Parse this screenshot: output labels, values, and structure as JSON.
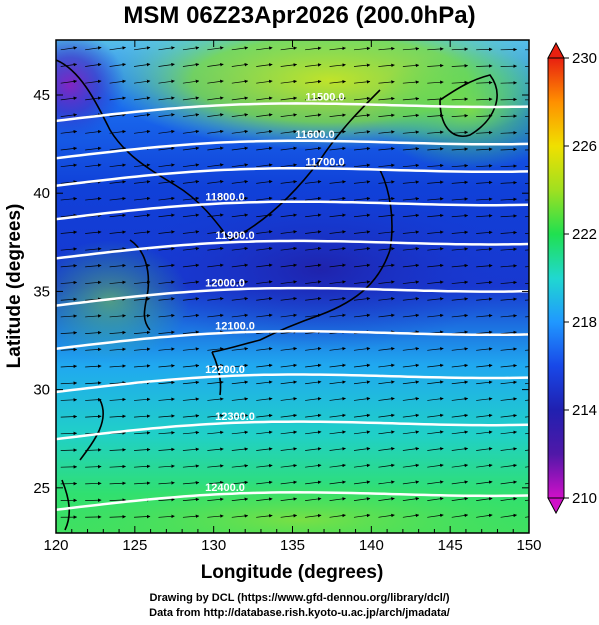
{
  "title": "MSM 06Z23Apr2026 (200.0hPa)",
  "chart_data": {
    "type": "heatmap",
    "title": "MSM 06Z23Apr2026 (200.0hPa)",
    "xlabel": "Longitude (degrees)",
    "ylabel": "Latitude  (degrees)",
    "xlim": [
      120,
      150
    ],
    "ylim": [
      22.7,
      47.8
    ],
    "x_ticks": [
      "120",
      "125",
      "130",
      "135",
      "140",
      "145",
      "150"
    ],
    "y_ticks": [
      "25",
      "30",
      "35",
      "40",
      "45"
    ],
    "colorbar": {
      "min": 210,
      "max": 230,
      "tick_labels": [
        "210",
        "214",
        "218",
        "222",
        "226",
        "230"
      ],
      "colors": [
        "#d010c8",
        "#4020b0",
        "#1840d8",
        "#2090ff",
        "#20d8d8",
        "#20e060",
        "#b0e820",
        "#f0d000",
        "#ff8000",
        "#e82010"
      ]
    },
    "contour_lines": [
      {
        "label": "11500.0",
        "lat": 44.8
      },
      {
        "label": "11600.0",
        "lat": 42.9
      },
      {
        "label": "11700.0",
        "lat": 41.5
      },
      {
        "label": "11800.0",
        "lat": 39.8
      },
      {
        "label": "11900.0",
        "lat": 37.8
      },
      {
        "label": "12000.0",
        "lat": 35.4
      },
      {
        "label": "12100.0",
        "lat": 33.2
      },
      {
        "label": "12200.0",
        "lat": 31.0
      },
      {
        "label": "12300.0",
        "lat": 28.6
      },
      {
        "label": "12400.0",
        "lat": 25.0
      }
    ]
  },
  "credits": {
    "line1": "Drawing by DCL (https://www.gfd-dennou.org/library/dcl/)",
    "line2": "Data from http://database.rish.kyoto-u.ac.jp/arch/jmadata/"
  }
}
